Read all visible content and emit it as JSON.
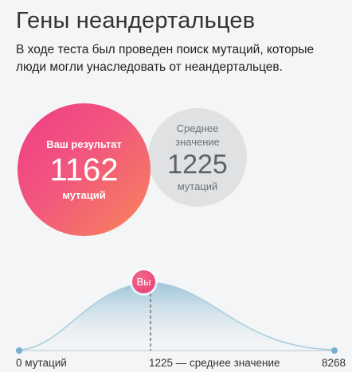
{
  "page": {
    "title": "Гены неандертальцев",
    "description": "В ходе теста был проведен поиск мутаций, которые люди могли унаследовать от неандертальцев."
  },
  "result": {
    "label": "Ваш результат",
    "value": "1162",
    "unit": "мутаций"
  },
  "average": {
    "label_line1": "Среднее",
    "label_line2": "значение",
    "value": "1225",
    "unit": "мутаций"
  },
  "distribution": {
    "marker_label": "Вы",
    "min_label": "0 мутаций",
    "mid_label": "1225 — среднее значение",
    "max_label": "8268",
    "min": 0,
    "mean": 1225,
    "user_value": 1162,
    "max": 8268,
    "colors": {
      "curve_top": "#9cc4d8",
      "curve_bottom": "#eef3f6",
      "endpoint": "#7aaed0",
      "marker": "#e6396f"
    }
  }
}
